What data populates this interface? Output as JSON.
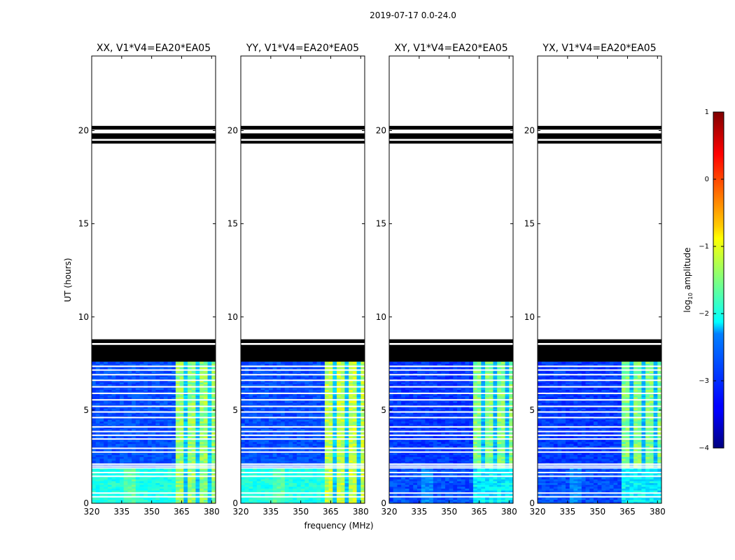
{
  "figure_title": "2019-07-17 0.0-24.0",
  "chart_data": {
    "type": "heatmap",
    "title": "2019-07-17 0.0-24.0",
    "xlabel": "frequency (MHz)",
    "ylabel": "UT (hours)",
    "xlim": [
      320,
      382
    ],
    "ylim": [
      0,
      24
    ],
    "xticks": [
      320,
      335,
      350,
      365,
      380
    ],
    "yticks": [
      0,
      5,
      10,
      15,
      20
    ],
    "colorbar": {
      "label_prefix": "log",
      "label_sub": "10",
      "label_suffix": " amplitude",
      "range": [
        -4,
        1
      ],
      "ticks": [
        1,
        0,
        -1,
        -2,
        -3,
        -4
      ],
      "colormap": "jet"
    },
    "data_extent_hours": [
      0,
      7.6
    ],
    "flag_bands": [
      [
        7.6,
        8.5
      ],
      [
        8.6,
        8.8
      ],
      [
        19.3,
        19.45
      ],
      [
        19.55,
        19.85
      ],
      [
        20.05,
        20.25
      ]
    ],
    "gap_lines": [
      0.35,
      0.55,
      1.45,
      1.65,
      1.9,
      2.0,
      2.1,
      2.75,
      2.95,
      3.45,
      3.65,
      3.85,
      4.1,
      4.6,
      4.9,
      5.2,
      5.55,
      5.9,
      6.25,
      6.6,
      6.9,
      7.15,
      7.35
    ],
    "rfi_band_mhz": [
      361,
      381
    ],
    "panels": [
      {
        "title": "XX, V1*V4=EA20*EA05",
        "background_log10": -3.0,
        "low_band_log10": -2.0,
        "rfi_log10": -1.4
      },
      {
        "title": "YY, V1*V4=EA20*EA05",
        "background_log10": -3.0,
        "low_band_log10": -2.0,
        "rfi_log10": -1.2
      },
      {
        "title": "XY, V1*V4=EA20*EA05",
        "background_log10": -3.1,
        "low_band_log10": -3.0,
        "rfi_log10": -1.5
      },
      {
        "title": "YX, V1*V4=EA20*EA05",
        "background_log10": -3.1,
        "low_band_log10": -3.0,
        "rfi_log10": -1.5
      }
    ]
  }
}
